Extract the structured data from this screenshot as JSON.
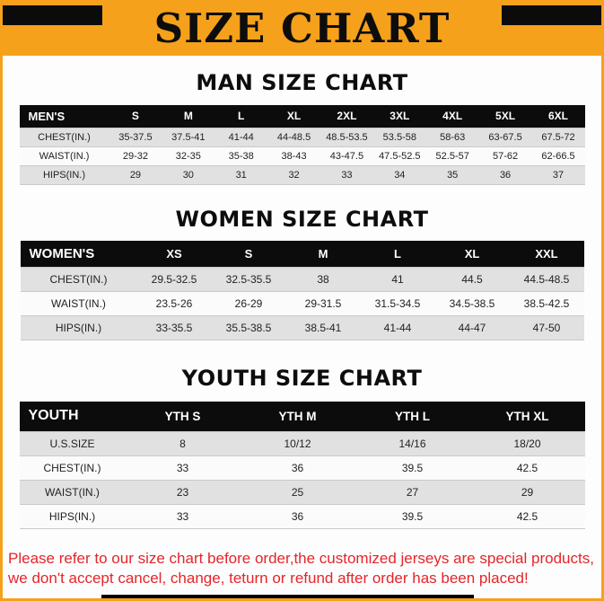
{
  "banner": {
    "title": "SIZE CHART"
  },
  "colors": {
    "banner_bg": "#f5a11b",
    "table_header_bg": "#0c0c0c",
    "row_stripe": "#e1e1e1",
    "footer_text": "#e4252b"
  },
  "sections": [
    {
      "heading": "MAN SIZE CHART",
      "table": {
        "header": [
          "MEN'S",
          "S",
          "M",
          "L",
          "XL",
          "2XL",
          "3XL",
          "4XL",
          "5XL",
          "6XL"
        ],
        "rows": [
          [
            "CHEST(IN.)",
            "35-37.5",
            "37.5-41",
            "41-44",
            "44-48.5",
            "48.5-53.5",
            "53.5-58",
            "58-63",
            "63-67.5",
            "67.5-72"
          ],
          [
            "WAIST(IN.)",
            "29-32",
            "32-35",
            "35-38",
            "38-43",
            "43-47.5",
            "47.5-52.5",
            "52.5-57",
            "57-62",
            "62-66.5"
          ],
          [
            "HIPS(IN.)",
            "29",
            "30",
            "31",
            "32",
            "33",
            "34",
            "35",
            "36",
            "37"
          ]
        ]
      }
    },
    {
      "heading": "WOMEN SIZE CHART",
      "table": {
        "header": [
          "WOMEN'S",
          "XS",
          "S",
          "M",
          "L",
          "XL",
          "XXL"
        ],
        "rows": [
          [
            "CHEST(IN.)",
            "29.5-32.5",
            "32.5-35.5",
            "38",
            "41",
            "44.5",
            "44.5-48.5"
          ],
          [
            "WAIST(IN.)",
            "23.5-26",
            "26-29",
            "29-31.5",
            "31.5-34.5",
            "34.5-38.5",
            "38.5-42.5"
          ],
          [
            "HIPS(IN.)",
            "33-35.5",
            "35.5-38.5",
            "38.5-41",
            "41-44",
            "44-47",
            "47-50"
          ]
        ]
      }
    },
    {
      "heading": "YOUTH SIZE CHART",
      "table": {
        "header": [
          "YOUTH",
          "YTH S",
          "YTH M",
          "YTH L",
          "YTH XL"
        ],
        "rows": [
          [
            "U.S.SIZE",
            "8",
            "10/12",
            "14/16",
            "18/20"
          ],
          [
            "CHEST(IN.)",
            "33",
            "36",
            "39.5",
            "42.5"
          ],
          [
            "WAIST(IN.)",
            "23",
            "25",
            "27",
            "29"
          ],
          [
            "HIPS(IN.)",
            "33",
            "36",
            "39.5",
            "42.5"
          ]
        ]
      }
    }
  ],
  "footer": {
    "lines": [
      "Please refer to our size chart before order,the customized jerseys are special products,",
      "we don't accept cancel, change, teturn or refund after order has been placed!"
    ]
  }
}
